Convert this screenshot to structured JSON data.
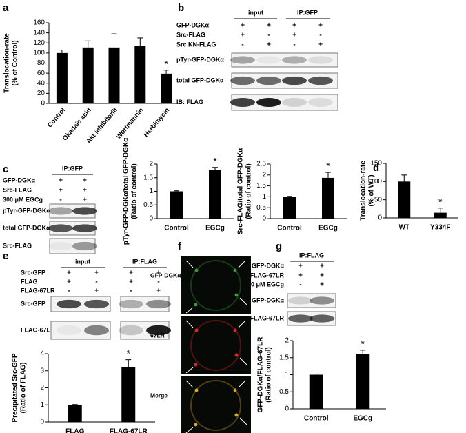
{
  "panel_labels": [
    "a",
    "b",
    "c",
    "d",
    "e",
    "f",
    "g"
  ],
  "chart_data": [
    {
      "type": "bar",
      "ylabel": [
        "Translocation-rate",
        "(% of Control)"
      ],
      "categories": [
        "Control",
        "Okadaic acid",
        "Akt inhibitorIII",
        "Wortmannin",
        "Herbimycin"
      ],
      "values": [
        100,
        111,
        111,
        114,
        59
      ],
      "errors": [
        6,
        13,
        27,
        16,
        7
      ],
      "color": "#000000",
      "ylim": [
        0,
        160
      ],
      "yticks": [
        0,
        20,
        40,
        60,
        80,
        100,
        120,
        140,
        160
      ],
      "annotations": [
        {
          "category": "Herbimycin",
          "text": "*"
        }
      ]
    },
    {
      "type": "bar",
      "ylabel": [
        "pTyr-GFP-DGKα/total GFP-DGKα",
        "(Ratio of control)"
      ],
      "categories": [
        "Control",
        "EGCg"
      ],
      "values": [
        1.0,
        1.78
      ],
      "errors": [
        0.02,
        0.1
      ],
      "color": "#000000",
      "ylim": [
        0,
        2
      ],
      "yticks": [
        0,
        0.5,
        1,
        1.5,
        2
      ],
      "annotations": [
        {
          "category": "EGCg",
          "text": "*"
        }
      ]
    },
    {
      "type": "bar",
      "ylabel": [
        "Src-FLAG/total GFP-DGKα",
        "(Ratio of control)"
      ],
      "categories": [
        "Control",
        "EGCg"
      ],
      "values": [
        1.0,
        1.87
      ],
      "errors": [
        0.02,
        0.25
      ],
      "color": "#000000",
      "ylim": [
        0,
        2.5
      ],
      "yticks": [
        0,
        0.5,
        1,
        1.5,
        2,
        2.5
      ],
      "annotations": [
        {
          "category": "EGCg",
          "text": "*"
        }
      ]
    },
    {
      "type": "bar",
      "ylabel": [
        "Translocation-rate",
        "(% of WT)"
      ],
      "categories": [
        "WT",
        "Y334F"
      ],
      "values": [
        100,
        14
      ],
      "errors": [
        18,
        13
      ],
      "color": "#000000",
      "ylim": [
        0,
        150
      ],
      "yticks": [
        0,
        50,
        100,
        150
      ],
      "annotations": [
        {
          "category": "Y334F",
          "text": "*"
        }
      ]
    },
    {
      "type": "bar",
      "ylabel": [
        "Precipitated Src-GFP",
        "(Ratio of FLAG)"
      ],
      "categories": [
        "FLAG",
        "FLAG-67LR"
      ],
      "values": [
        1.0,
        3.2
      ],
      "errors": [
        0.02,
        0.45
      ],
      "color": "#000000",
      "ylim": [
        0,
        4
      ],
      "yticks": [
        0,
        1,
        2,
        3,
        4
      ],
      "annotations": [
        {
          "category": "FLAG-67LR",
          "text": "*"
        }
      ]
    },
    {
      "type": "bar",
      "ylabel": [
        "GFP-DGKα/FLAG-67LR",
        "(Ratio of  control)"
      ],
      "categories": [
        "Control",
        "EGCg"
      ],
      "values": [
        1.0,
        1.6
      ],
      "errors": [
        0.02,
        0.12
      ],
      "color": "#000000",
      "ylim": [
        0,
        2
      ],
      "yticks": [
        0,
        0.5,
        1,
        1.5,
        2
      ],
      "annotations": [
        {
          "category": "EGCg",
          "text": "*"
        }
      ]
    }
  ],
  "blots": [
    {
      "headers": [
        "input",
        "IP:GFP"
      ],
      "rows": [
        {
          "label": "GFP-DGKα",
          "signs": [
            "+",
            "+",
            "+",
            "+"
          ]
        },
        {
          "label": "Src-FLAG",
          "signs": [
            "+",
            "-",
            "+",
            "-"
          ]
        },
        {
          "label": "Src KN-FLAG",
          "signs": [
            "-",
            "+",
            "-",
            "+"
          ]
        }
      ],
      "bands": [
        "pTyr-GFP-DGKα",
        "total GFP-DGKα",
        "IB: FLAG"
      ]
    },
    {
      "headers": [
        "IP:GFP"
      ],
      "rows": [
        {
          "label": "GFP-DGKα",
          "signs": [
            "+",
            "+"
          ]
        },
        {
          "label": "Src-FLAG",
          "signs": [
            "+",
            "+"
          ]
        },
        {
          "label": "300 μM EGCg",
          "signs": [
            "-",
            "+"
          ]
        }
      ],
      "bands": [
        "pTyr-GFP-DGKα",
        "total GFP-DGKα",
        "Src-FLAG"
      ]
    },
    {
      "headers": [
        "input",
        "IP:FLAG"
      ],
      "rows": [
        {
          "label": "Src-GFP",
          "signs": [
            "+",
            "+",
            "+",
            "+"
          ]
        },
        {
          "label": "FLAG",
          "signs": [
            "+",
            "-",
            "+",
            "-"
          ]
        },
        {
          "label": "FLAG-67LR",
          "signs": [
            "-",
            "+",
            "-",
            "+"
          ]
        }
      ],
      "bands": [
        "Src-GFP",
        "FLAG-67LR"
      ]
    },
    {
      "headers": [
        "IP:FLAG"
      ],
      "rows": [
        {
          "label": "GFP-DGKα",
          "signs": [
            "+",
            "+"
          ]
        },
        {
          "label": "FLAG-67LR",
          "signs": [
            "+",
            "+"
          ]
        },
        {
          "label": "300 μM EGCg",
          "signs": [
            "-",
            "+"
          ]
        }
      ],
      "bands": [
        "GFP-DGKα",
        "FLAG-67LR"
      ]
    }
  ],
  "microscopy": {
    "labels": [
      "GFP-DGKα",
      "67LR",
      "Merge"
    ]
  }
}
